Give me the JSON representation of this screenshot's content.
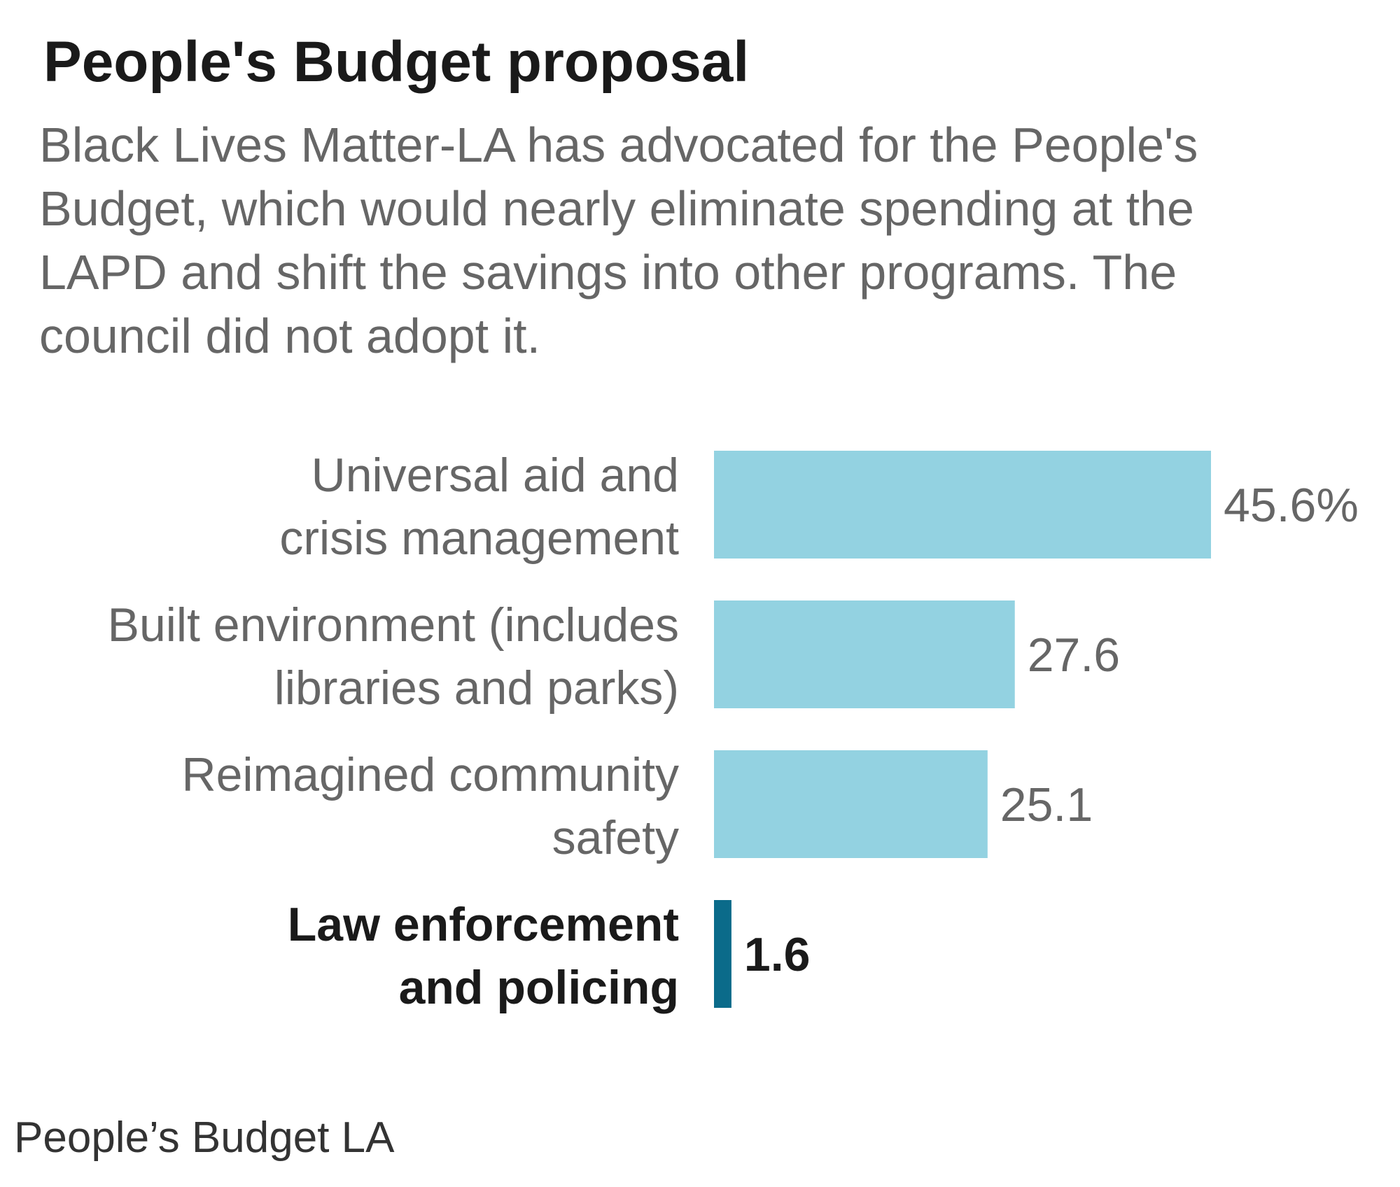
{
  "header": {
    "title": "People's Budget proposal",
    "subtitle": "Black Lives Matter-LA has advocated for the People's\nBudget, which would nearly eliminate spending at the\nLAPD and shift the savings into other programs. The\ncouncil did not adopt it."
  },
  "chart_data": {
    "type": "bar",
    "orientation": "horizontal",
    "unit": "%",
    "categories": [
      [
        "Universal aid and",
        "crisis management"
      ],
      [
        "Built environment (includes",
        "libraries and parks)"
      ],
      [
        "Reimagined community",
        "safety"
      ],
      [
        "Law enforcement",
        "and policing"
      ]
    ],
    "values": [
      45.6,
      27.6,
      25.1,
      1.6
    ],
    "value_labels": [
      "45.6%",
      "27.6",
      "25.1",
      "1.6"
    ],
    "highlighted": [
      false,
      false,
      false,
      true
    ],
    "xlim": [
      0,
      45.6
    ],
    "colors": {
      "bar": "#93d2e1",
      "bar_highlight": "#0b6b8a",
      "label": "#666666",
      "label_highlight": "#1a1a1a"
    }
  },
  "footer": {
    "source": "People’s Budget LA"
  }
}
